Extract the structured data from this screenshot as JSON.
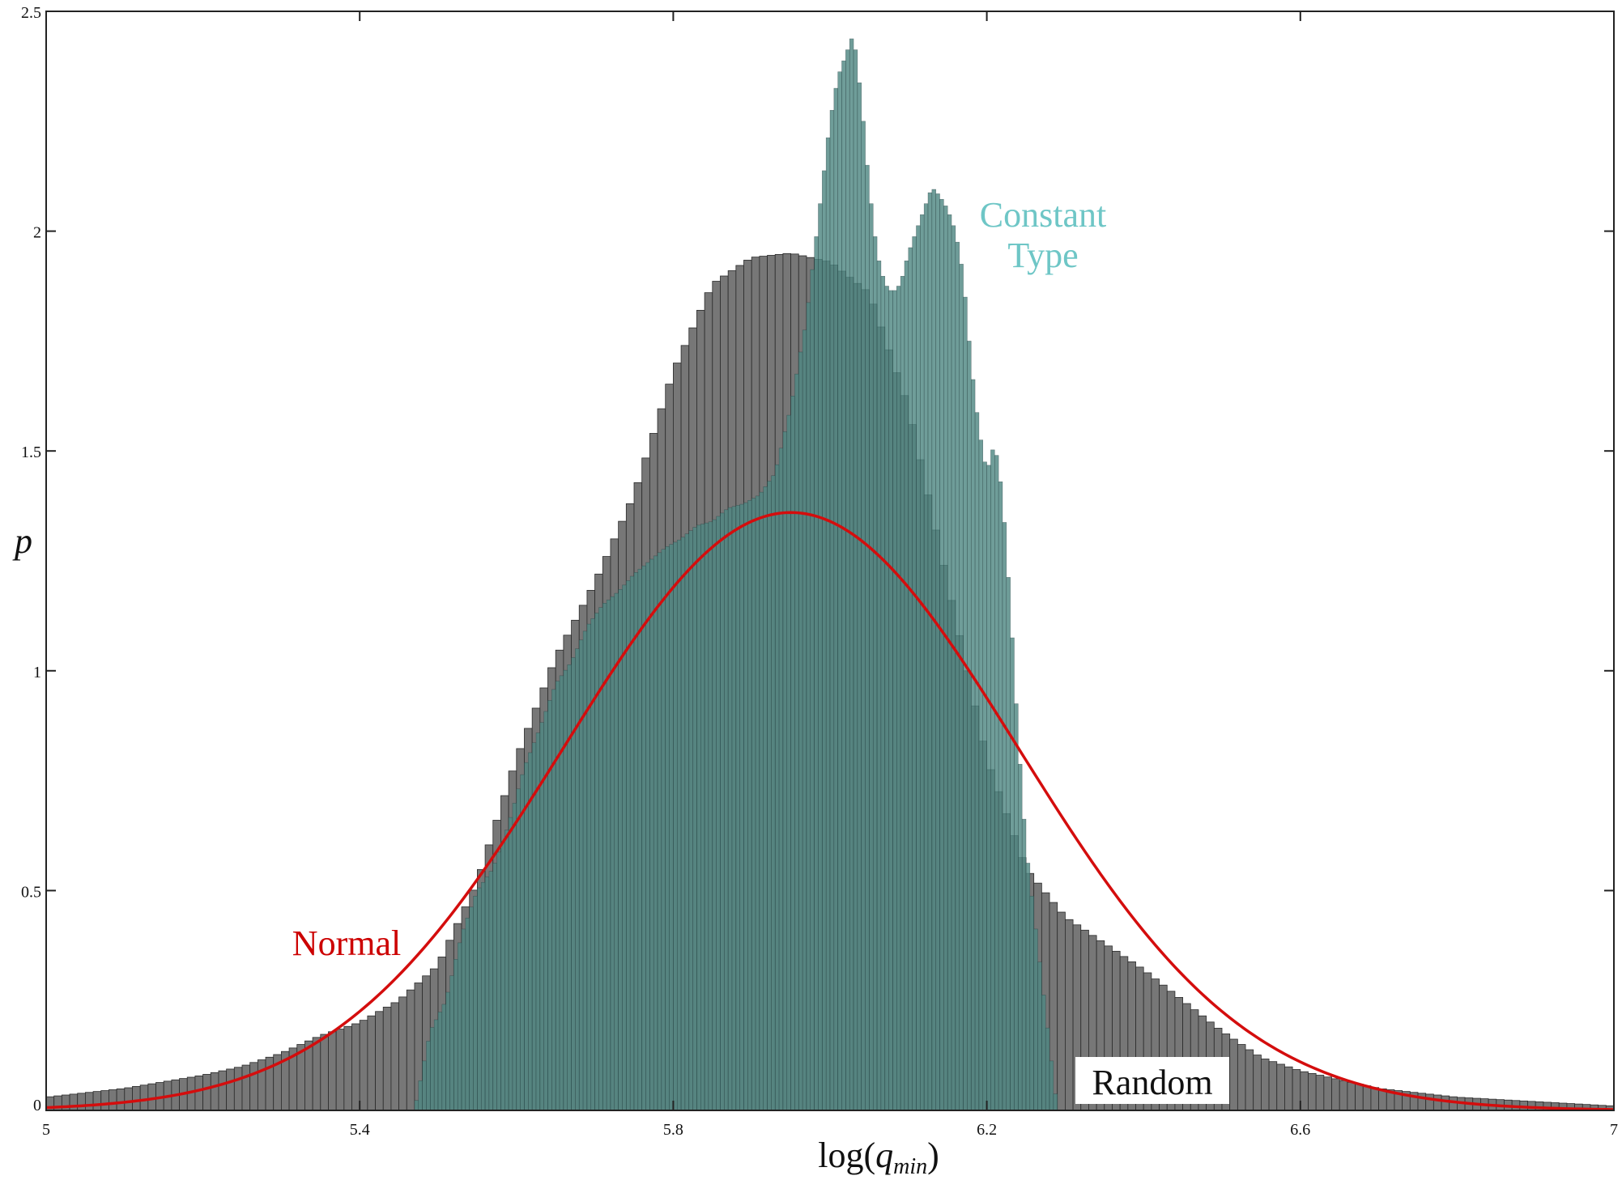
{
  "chart_data": {
    "type": "bar",
    "xlabel_prefix": "log(",
    "xlabel_var": "q",
    "xlabel_sub": "min",
    "xlabel_suffix": ")",
    "ylabel": "p",
    "xlim": [
      5,
      7
    ],
    "ylim": [
      0,
      2.5
    ],
    "grid": false,
    "x_ticks": [
      5,
      5.4,
      5.8,
      6.2,
      6.6,
      7
    ],
    "x_tick_labels": [
      "5",
      "5.4",
      "5.8",
      "6.2",
      "6.6",
      "7"
    ],
    "y_ticks": [
      0,
      0.5,
      1,
      1.5,
      2,
      2.5
    ],
    "y_tick_labels": [
      "0",
      "0.5",
      "1",
      "1.5",
      "2",
      "2.5"
    ],
    "colors": {
      "random_fill": "#777777",
      "constant_fill": "#4f8783",
      "constant_outline": "#22393a",
      "normal_line": "#d40d0d",
      "annotation_constant": "#6ec6c6",
      "annotation_normal": "#cc0000",
      "annotation_random": "#111111"
    },
    "annotations": {
      "constant_line1": "Constant",
      "constant_line2": "Type",
      "normal": "Normal",
      "random": "Random"
    },
    "series": [
      {
        "name": "Random",
        "x": [
          5.0,
          5.05,
          5.1,
          5.15,
          5.2,
          5.25,
          5.3,
          5.35,
          5.4,
          5.45,
          5.5,
          5.55,
          5.6,
          5.65,
          5.7,
          5.75,
          5.8,
          5.85,
          5.9,
          5.95,
          6.0,
          6.05,
          6.1,
          6.15,
          6.2,
          6.25,
          6.3,
          6.35,
          6.4,
          6.45,
          6.5,
          6.55,
          6.6,
          6.65,
          6.7,
          6.75,
          6.8,
          6.85,
          6.9,
          6.95,
          7.0
        ],
        "values": [
          0.03,
          0.04,
          0.05,
          0.065,
          0.08,
          0.1,
          0.13,
          0.17,
          0.2,
          0.25,
          0.33,
          0.52,
          0.8,
          1.03,
          1.2,
          1.4,
          1.68,
          1.88,
          1.94,
          1.95,
          1.93,
          1.86,
          1.6,
          1.2,
          0.8,
          0.55,
          0.44,
          0.38,
          0.32,
          0.25,
          0.18,
          0.12,
          0.09,
          0.07,
          0.05,
          0.04,
          0.03,
          0.025,
          0.02,
          0.015,
          0.01
        ]
      },
      {
        "name": "Constant Type",
        "x": [
          5.47,
          5.49,
          5.51,
          5.53,
          5.55,
          5.57,
          5.59,
          5.61,
          5.63,
          5.65,
          5.67,
          5.69,
          5.71,
          5.73,
          5.75,
          5.77,
          5.79,
          5.81,
          5.83,
          5.85,
          5.87,
          5.89,
          5.91,
          5.93,
          5.95,
          5.97,
          5.99,
          6.0,
          6.01,
          6.02,
          6.03,
          6.04,
          6.05,
          6.06,
          6.07,
          6.08,
          6.09,
          6.1,
          6.11,
          6.12,
          6.13,
          6.14,
          6.15,
          6.16,
          6.17,
          6.18,
          6.19,
          6.2,
          6.21,
          6.22,
          6.23,
          6.24,
          6.25,
          6.26,
          6.27,
          6.28,
          6.29
        ],
        "values": [
          0.0,
          0.18,
          0.25,
          0.4,
          0.5,
          0.55,
          0.65,
          0.78,
          0.87,
          0.97,
          1.02,
          1.1,
          1.15,
          1.18,
          1.22,
          1.25,
          1.28,
          1.3,
          1.33,
          1.34,
          1.37,
          1.38,
          1.4,
          1.45,
          1.6,
          1.8,
          2.1,
          2.25,
          2.35,
          2.4,
          2.45,
          2.3,
          2.1,
          1.95,
          1.88,
          1.86,
          1.88,
          1.95,
          2.0,
          2.05,
          2.1,
          2.08,
          2.05,
          2.0,
          1.9,
          1.7,
          1.55,
          1.45,
          1.52,
          1.4,
          1.15,
          0.85,
          0.6,
          0.45,
          0.3,
          0.15,
          0.0
        ]
      },
      {
        "name": "Normal",
        "mean": 5.95,
        "std": 0.29,
        "peak": 1.36
      }
    ]
  }
}
